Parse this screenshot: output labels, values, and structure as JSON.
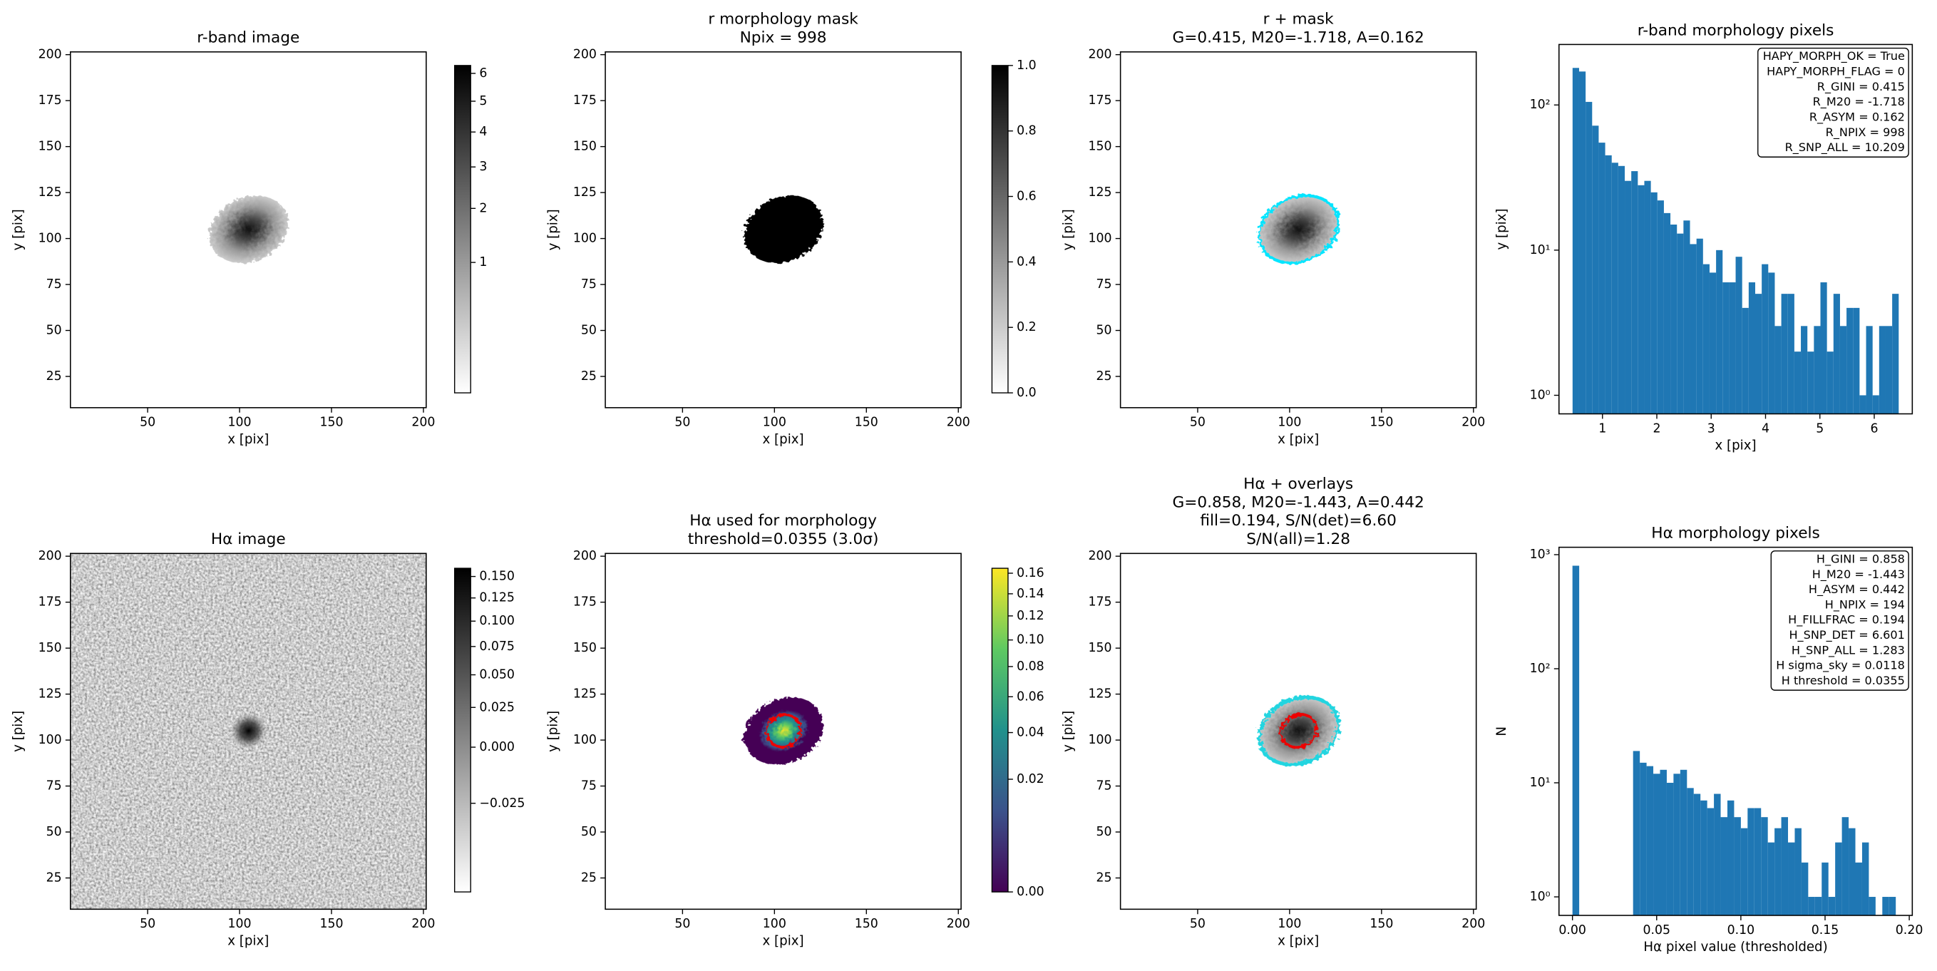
{
  "chart_data": [
    {
      "type": "image",
      "title": [
        "r-band image"
      ],
      "xlabel": "x [pix]",
      "ylabel": "y [pix]",
      "xlim": [
        8,
        201.5
      ],
      "ylim": [
        8,
        201.5
      ],
      "xticks": [
        50,
        100,
        150,
        200
      ],
      "yticks": [
        25,
        50,
        75,
        100,
        125,
        150,
        175,
        200
      ],
      "colorbar": {
        "cmap": "gray_r",
        "scale": "sqrt",
        "lim": [
          0,
          6.3
        ],
        "ticks": [
          1,
          2,
          3,
          4,
          5,
          6
        ]
      }
    },
    {
      "type": "image",
      "title": [
        "r morphology mask",
        "Npix = 998"
      ],
      "xlabel": "x [pix]",
      "ylabel": "y [pix]",
      "xlim": [
        8,
        201.5
      ],
      "ylim": [
        8,
        201.5
      ],
      "xticks": [
        50,
        100,
        150,
        200
      ],
      "yticks": [
        25,
        50,
        75,
        100,
        125,
        150,
        175,
        200
      ],
      "colorbar": {
        "cmap": "gray_r",
        "scale": "linear",
        "lim": [
          0,
          1
        ],
        "ticks": [
          {
            "value": 0,
            "label": "0.0"
          },
          {
            "value": 0.2,
            "label": "0.2"
          },
          {
            "value": 0.4,
            "label": "0.4"
          },
          {
            "value": 0.6,
            "label": "0.6"
          },
          {
            "value": 0.8,
            "label": "0.8"
          },
          {
            "value": 1,
            "label": "1.0"
          }
        ]
      }
    },
    {
      "type": "image",
      "title": [
        "r + mask",
        "G=0.415, M20=-1.718, A=0.162"
      ],
      "xlabel": "x [pix]",
      "ylabel": "y [pix]",
      "xlim": [
        8,
        201.5
      ],
      "ylim": [
        8,
        201.5
      ],
      "xticks": [
        50,
        100,
        150,
        200
      ],
      "yticks": [
        25,
        50,
        75,
        100,
        125,
        150,
        175,
        200
      ]
    },
    {
      "type": "histogram",
      "title": [
        "r-band morphology pixels"
      ],
      "xlabel": "x [pix]",
      "ylabel": "y [pix]",
      "color": "#1f77b4",
      "log_y": true,
      "xlim": [
        0.2,
        6.7
      ],
      "ylim": [
        0.745,
        261
      ],
      "xticks": [
        1,
        2,
        3,
        4,
        5,
        6
      ],
      "yticks": [
        {
          "value": 1,
          "label": "10⁰"
        },
        {
          "value": 10,
          "label": "10¹"
        },
        {
          "value": 100,
          "label": "10²"
        }
      ],
      "bins": [
        0.45,
        0.57,
        0.69,
        0.81,
        0.93,
        1.05,
        1.17,
        1.29,
        1.41,
        1.53,
        1.65,
        1.77,
        1.89,
        2.01,
        2.13,
        2.25,
        2.37,
        2.49,
        2.61,
        2.73,
        2.85,
        2.97,
        3.09,
        3.21,
        3.33,
        3.45,
        3.57,
        3.69,
        3.81,
        3.93,
        4.05,
        4.17,
        4.29,
        4.41,
        4.53,
        4.65,
        4.77,
        4.89,
        5.01,
        5.13,
        5.25,
        5.37,
        5.49,
        5.61,
        5.73,
        5.85,
        5.97,
        6.09,
        6.21,
        6.33,
        6.45
      ],
      "values": [
        180,
        170,
        105,
        72,
        55,
        45,
        40,
        38,
        30,
        35,
        28,
        30,
        25,
        22,
        18,
        15,
        13,
        16,
        11,
        12,
        8,
        7,
        10,
        6,
        6,
        9,
        4,
        6,
        5,
        8,
        7,
        3,
        5,
        5,
        2,
        3,
        2,
        3,
        6,
        2,
        5,
        3,
        4,
        4,
        1,
        3,
        1,
        3,
        3,
        5
      ],
      "annotation": [
        "HAPY_MORPH_OK = True",
        "HAPY_MORPH_FLAG = 0",
        "R_GINI = 0.415",
        "R_M20 = -1.718",
        "R_ASYM = 0.162",
        "R_NPIX = 998",
        "R_SNP_ALL = 10.209"
      ]
    },
    {
      "type": "image",
      "title": [
        "Hα image"
      ],
      "xlabel": "x [pix]",
      "ylabel": "y [pix]",
      "xlim": [
        8,
        201.5
      ],
      "ylim": [
        8,
        201.5
      ],
      "xticks": [
        50,
        100,
        150,
        200
      ],
      "yticks": [
        25,
        50,
        75,
        100,
        125,
        150,
        175,
        200
      ],
      "colorbar": {
        "cmap": "gray_r",
        "scale": "sqrt",
        "lim": [
          -0.04,
          0.16
        ],
        "ticks": [
          {
            "value": -0.025,
            "label": "−0.025"
          },
          {
            "value": 0,
            "label": "0.000"
          },
          {
            "value": 0.025,
            "label": "0.025"
          },
          {
            "value": 0.05,
            "label": "0.050"
          },
          {
            "value": 0.075,
            "label": "0.075"
          },
          {
            "value": 0.1,
            "label": "0.100"
          },
          {
            "value": 0.125,
            "label": "0.125"
          },
          {
            "value": 0.15,
            "label": "0.150"
          }
        ]
      }
    },
    {
      "type": "image",
      "title": [
        "Hα used for morphology",
        "threshold=0.0355 (3.0σ)"
      ],
      "xlabel": "x [pix]",
      "ylabel": "y [pix]",
      "xlim": [
        8,
        201.5
      ],
      "ylim": [
        8,
        201.5
      ],
      "xticks": [
        50,
        100,
        150,
        200
      ],
      "yticks": [
        25,
        50,
        75,
        100,
        125,
        150,
        175,
        200
      ],
      "colorbar": {
        "cmap": "viridis",
        "scale": "sqrt",
        "lim": [
          0,
          0.165
        ],
        "ticks": [
          {
            "value": 0,
            "label": "0.00"
          },
          {
            "value": 0.02,
            "label": "0.02"
          },
          {
            "value": 0.04,
            "label": "0.04"
          },
          {
            "value": 0.06,
            "label": "0.06"
          },
          {
            "value": 0.08,
            "label": "0.08"
          },
          {
            "value": 0.1,
            "label": "0.10"
          },
          {
            "value": 0.12,
            "label": "0.12"
          },
          {
            "value": 0.14,
            "label": "0.14"
          },
          {
            "value": 0.16,
            "label": "0.16"
          }
        ]
      }
    },
    {
      "type": "image",
      "title": [
        "Hα + overlays",
        "G=0.858, M20=-1.443, A=0.442",
        "fill=0.194, S/N(det)=6.60",
        "S/N(all)=1.28"
      ],
      "xlabel": "x [pix]",
      "ylabel": "y [pix]",
      "xlim": [
        8,
        201.5
      ],
      "ylim": [
        8,
        201.5
      ],
      "xticks": [
        50,
        100,
        150,
        200
      ],
      "yticks": [
        25,
        50,
        75,
        100,
        125,
        150,
        175,
        200
      ]
    },
    {
      "type": "histogram",
      "title": [
        "Hα morphology pixels"
      ],
      "xlabel": "Hα pixel value (thresholded)",
      "ylabel": "N",
      "color": "#1f77b4",
      "log_y": true,
      "xlim": [
        -0.008,
        0.2018
      ],
      "ylim": [
        0.688,
        1161
      ],
      "xticks": [
        {
          "value": 0,
          "label": "0.00"
        },
        {
          "value": 0.05,
          "label": "0.05"
        },
        {
          "value": 0.1,
          "label": "0.10"
        },
        {
          "value": 0.15,
          "label": "0.15"
        },
        {
          "value": 0.2,
          "label": "0.20"
        }
      ],
      "yticks": [
        {
          "value": 1,
          "label": "10⁰"
        },
        {
          "value": 10,
          "label": "10¹"
        },
        {
          "value": 100,
          "label": "10²"
        },
        {
          "value": 1000,
          "label": "10³"
        }
      ],
      "bins": [
        0,
        0.004,
        0.008,
        0.012,
        0.016,
        0.02,
        0.024,
        0.028,
        0.032,
        0.036,
        0.04,
        0.044,
        0.048,
        0.052,
        0.056,
        0.06,
        0.064,
        0.068,
        0.072,
        0.076,
        0.08,
        0.084,
        0.088,
        0.092,
        0.096,
        0.1,
        0.104,
        0.108,
        0.112,
        0.116,
        0.12,
        0.124,
        0.128,
        0.132,
        0.136,
        0.14,
        0.144,
        0.148,
        0.152,
        0.156,
        0.16,
        0.164,
        0.168,
        0.172,
        0.176,
        0.18,
        0.184,
        0.188,
        0.192
      ],
      "values": [
        800,
        0,
        0,
        0,
        0,
        0,
        0,
        0,
        0,
        19,
        15,
        14,
        12,
        13,
        10,
        12,
        13,
        9,
        8,
        7,
        6,
        8,
        5,
        7,
        5,
        4,
        6,
        6,
        5,
        3,
        4,
        5,
        3,
        4,
        2,
        1,
        1,
        2,
        1,
        3,
        5,
        4,
        2,
        3,
        1,
        0,
        1,
        1
      ],
      "annotation": [
        "H_GINI = 0.858",
        "H_M20 = -1.443",
        "H_ASYM = 0.442",
        "H_NPIX = 194",
        "H_FILLFRAC = 0.194",
        "H_SNP_DET = 6.601",
        "H_SNP_ALL = 1.283",
        "H sigma_sky = 0.0118",
        "H threshold = 0.0355"
      ]
    }
  ]
}
